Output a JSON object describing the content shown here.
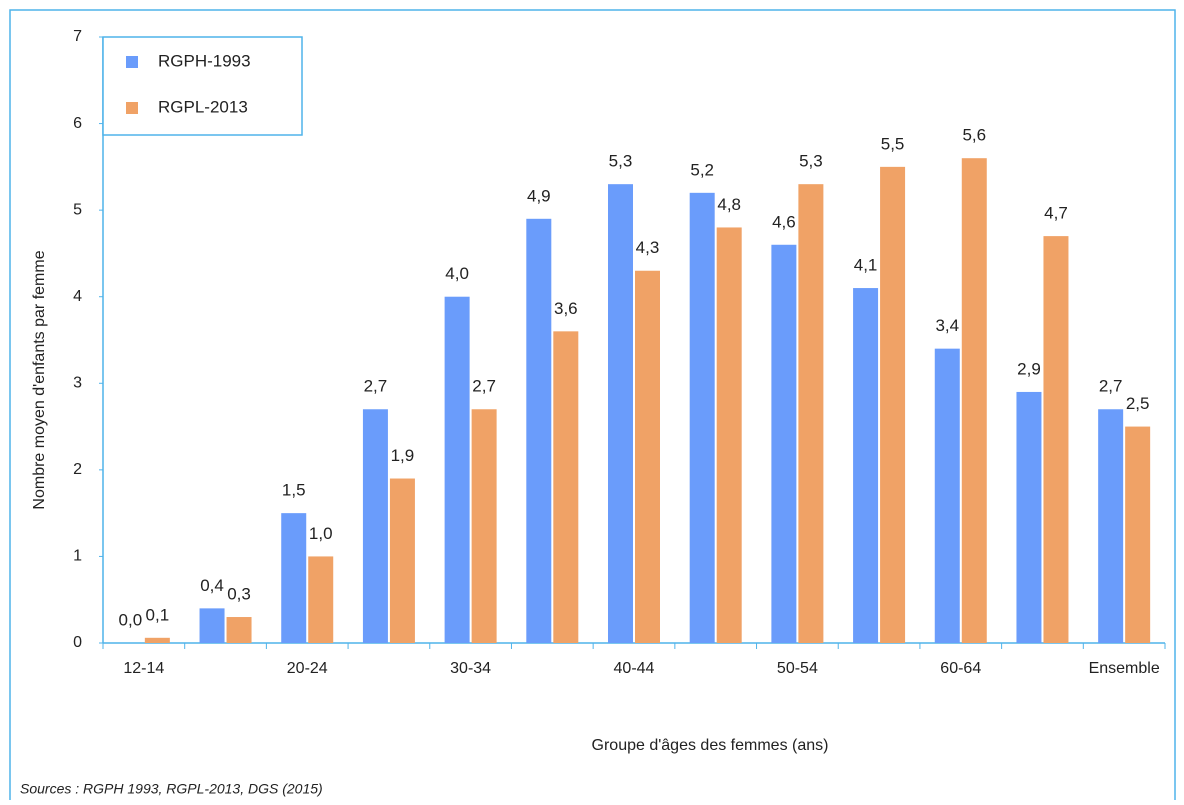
{
  "chart_data": {
    "type": "bar",
    "categories": [
      "12-14",
      null,
      "20-24",
      null,
      "30-34",
      null,
      "40-44",
      null,
      "50-54",
      null,
      "60-64",
      null,
      "Ensemble"
    ],
    "series": [
      {
        "name": "RGPH-1993",
        "color": "#6a9cfb",
        "values": [
          0.0,
          0.4,
          1.5,
          2.7,
          4.0,
          4.9,
          5.3,
          5.2,
          4.6,
          4.1,
          3.4,
          2.9,
          2.7
        ],
        "value_labels": [
          "0,0",
          "0,4",
          "1,5",
          "2,7",
          "4,0",
          "4,9",
          "5,3",
          "5,2",
          "4,6",
          "4,1",
          "3,4",
          "2,9",
          "2,7"
        ]
      },
      {
        "name": "RGPL-2013",
        "color": "#f0a266",
        "values": [
          0.06,
          0.3,
          1.0,
          1.9,
          2.7,
          3.6,
          4.3,
          4.8,
          5.3,
          5.5,
          5.6,
          4.7,
          2.5
        ],
        "value_labels": [
          "0,1",
          "0,3",
          "1,0",
          "1,9",
          "2,7",
          "3,6",
          "4,3",
          "4,8",
          "5,3",
          "5,5",
          "5,6",
          "4,7",
          "2,5"
        ]
      }
    ],
    "ylim": [
      0,
      7
    ],
    "yticks": [
      0,
      1,
      2,
      3,
      4,
      5,
      6,
      7
    ],
    "ylabel": "Nombre moyen d'enfants par femme",
    "xlabel": "Groupe d'âges des femmes (ans)",
    "source": "Sources : RGPH 1993, RGPL-2013, DGS (2015)",
    "legend": "upper left"
  }
}
